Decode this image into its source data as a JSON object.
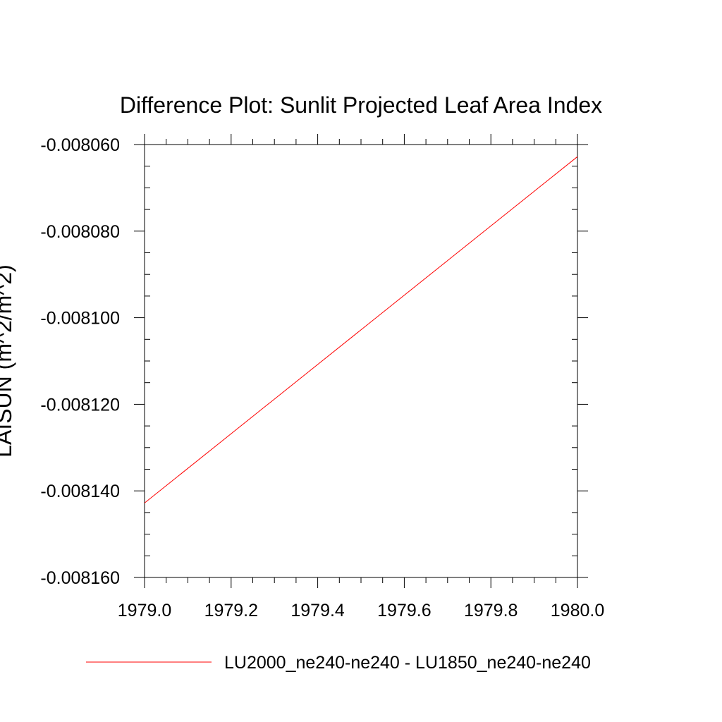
{
  "chart_data": {
    "type": "line",
    "title": "Difference Plot: Sunlit Projected Leaf Area Index",
    "ylabel": "LAISUN  (m^2/m^2)",
    "xlabel": "",
    "xlim": [
      1979.0,
      1980.0
    ],
    "ylim": [
      -0.00816,
      -0.00806
    ],
    "x_ticks": [
      1979.0,
      1979.2,
      1979.4,
      1979.6,
      1979.8,
      1980.0
    ],
    "x_tick_labels": [
      "1979.0",
      "1979.2",
      "1979.4",
      "1979.6",
      "1979.8",
      "1980.0"
    ],
    "y_ticks": [
      -0.00806,
      -0.00808,
      -0.0081,
      -0.00812,
      -0.00814,
      -0.00816
    ],
    "y_tick_labels": [
      "-0.008060",
      "-0.008080",
      "-0.008100",
      "-0.008120",
      "-0.008140",
      "-0.008160"
    ],
    "grid": false,
    "legend_position": "bottom",
    "series": [
      {
        "name": "LU2000_ne240-ne240 - LU1850_ne240-ne240",
        "color": "#ff0000",
        "x": [
          1979.0,
          1980.0
        ],
        "y": [
          -0.0081428,
          -0.0080628
        ]
      }
    ]
  }
}
